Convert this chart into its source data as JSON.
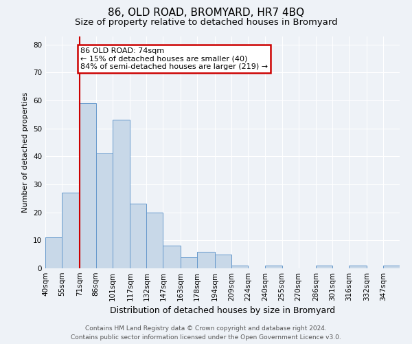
{
  "title": "86, OLD ROAD, BROMYARD, HR7 4BQ",
  "subtitle": "Size of property relative to detached houses in Bromyard",
  "xlabel": "Distribution of detached houses by size in Bromyard",
  "ylabel": "Number of detached properties",
  "bin_labels": [
    "40sqm",
    "55sqm",
    "71sqm",
    "86sqm",
    "101sqm",
    "117sqm",
    "132sqm",
    "147sqm",
    "163sqm",
    "178sqm",
    "194sqm",
    "209sqm",
    "224sqm",
    "240sqm",
    "255sqm",
    "270sqm",
    "286sqm",
    "301sqm",
    "316sqm",
    "332sqm",
    "347sqm"
  ],
  "bin_edges": [
    40,
    55,
    71,
    86,
    101,
    117,
    132,
    147,
    163,
    178,
    194,
    209,
    224,
    240,
    255,
    270,
    286,
    301,
    316,
    332,
    347
  ],
  "bar_heights": [
    11,
    27,
    59,
    41,
    53,
    23,
    20,
    8,
    4,
    6,
    5,
    1,
    0,
    1,
    0,
    0,
    1,
    0,
    1,
    0,
    1
  ],
  "bar_color": "#c8d8e8",
  "bar_edgecolor": "#6699cc",
  "vline_x": 71,
  "vline_color": "#cc0000",
  "annotation_title": "86 OLD ROAD: 74sqm",
  "annotation_line1": "← 15% of detached houses are smaller (40)",
  "annotation_line2": "84% of semi-detached houses are larger (219) →",
  "annotation_box_edgecolor": "#cc0000",
  "ylim": [
    0,
    83
  ],
  "yticks": [
    0,
    10,
    20,
    30,
    40,
    50,
    60,
    70,
    80
  ],
  "footer1": "Contains HM Land Registry data © Crown copyright and database right 2024.",
  "footer2": "Contains public sector information licensed under the Open Government Licence v3.0.",
  "background_color": "#eef2f7",
  "grid_color": "#ffffff",
  "title_fontsize": 11,
  "subtitle_fontsize": 9.5,
  "xlabel_fontsize": 9,
  "ylabel_fontsize": 8,
  "tick_fontsize": 7.5,
  "annot_fontsize": 8,
  "footer_fontsize": 6.5
}
